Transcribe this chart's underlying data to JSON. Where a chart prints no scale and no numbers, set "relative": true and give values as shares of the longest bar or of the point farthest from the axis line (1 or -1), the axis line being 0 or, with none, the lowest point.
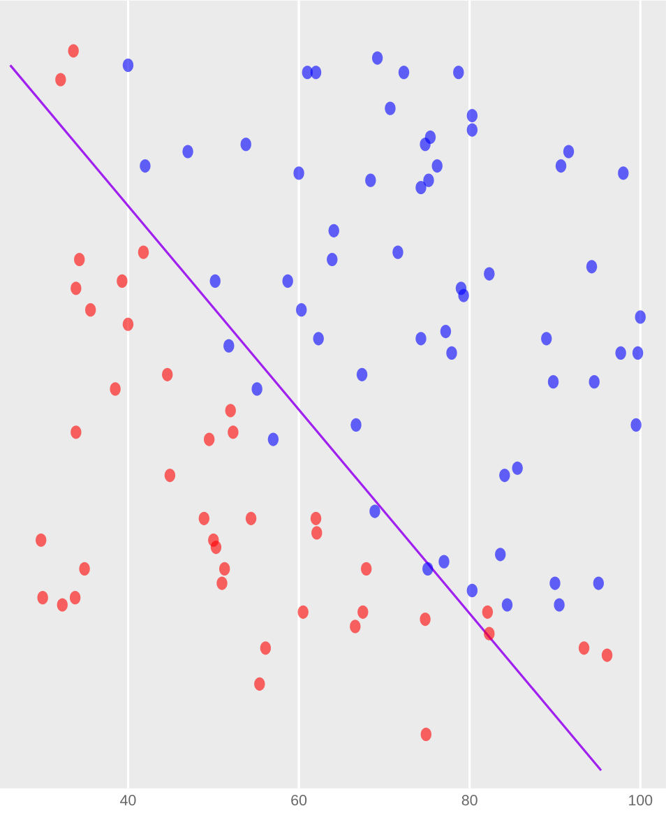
{
  "chart_data": {
    "type": "scatter",
    "relative": true,
    "marker": "circle",
    "grid": "x",
    "xlim": [
      25,
      103
    ],
    "xticks": [
      40,
      60,
      80,
      100
    ],
    "series": [
      {
        "color": "#ff0000",
        "x": [
          33.6,
          32.1,
          29.8,
          30.0,
          32.3,
          33.8,
          34.9,
          33.9,
          34.3,
          33.9,
          35.6,
          39.3,
          40.0,
          41.8,
          38.5,
          44.6,
          44.9,
          48.9,
          49.5,
          50.0,
          50.3,
          51.3,
          51.0,
          52.0,
          52.3,
          54.4,
          56.1,
          55.4,
          60.5,
          62.0,
          62.1,
          67.9,
          67.5,
          66.6,
          74.8,
          74.9,
          82.1,
          82.3,
          93.4,
          96.1
        ],
        "values": [
          1.0,
          0.96,
          0.32,
          0.24,
          0.23,
          0.24,
          0.28,
          0.47,
          0.71,
          0.67,
          0.64,
          0.68,
          0.62,
          0.72,
          0.53,
          0.55,
          0.41,
          0.35,
          0.46,
          0.32,
          0.31,
          0.28,
          0.26,
          0.5,
          0.47,
          0.35,
          0.17,
          0.12,
          0.22,
          0.35,
          0.33,
          0.28,
          0.22,
          0.2,
          0.21,
          0.05,
          0.22,
          0.19,
          0.17,
          0.16
        ]
      },
      {
        "color": "#0000ff",
        "x": [
          40.0,
          42.0,
          47.0,
          53.8,
          50.2,
          51.8,
          55.1,
          57.0,
          60.0,
          61.0,
          62.0,
          58.7,
          60.3,
          62.3,
          63.9,
          64.1,
          68.4,
          69.2,
          70.7,
          72.3,
          67.4,
          66.7,
          68.9,
          71.6,
          74.3,
          74.3,
          74.8,
          75.4,
          75.2,
          76.2,
          75.1,
          77.0,
          77.2,
          77.9,
          78.7,
          80.3,
          80.3,
          79.0,
          79.3,
          82.3,
          80.3,
          83.6,
          84.1,
          85.6,
          84.4,
          89.0,
          89.8,
          90.0,
          90.7,
          91.6,
          94.3,
          94.6,
          95.1,
          97.7,
          98.0,
          99.7,
          100.0,
          99.5,
          90.5
        ],
        "values": [
          0.98,
          0.84,
          0.86,
          0.87,
          0.68,
          0.59,
          0.53,
          0.46,
          0.83,
          0.97,
          0.97,
          0.68,
          0.64,
          0.6,
          0.71,
          0.75,
          0.82,
          0.99,
          0.92,
          0.97,
          0.55,
          0.48,
          0.36,
          0.72,
          0.6,
          0.81,
          0.87,
          0.88,
          0.82,
          0.84,
          0.28,
          0.29,
          0.61,
          0.58,
          0.97,
          0.91,
          0.89,
          0.67,
          0.66,
          0.69,
          0.25,
          0.3,
          0.41,
          0.42,
          0.23,
          0.6,
          0.54,
          0.26,
          0.84,
          0.86,
          0.7,
          0.54,
          0.26,
          0.58,
          0.83,
          0.58,
          0.63,
          0.48,
          0.23
        ]
      },
      {
        "type": "line",
        "color": "#a020f0",
        "marker": "none",
        "x": [
          26.2,
          95.4
        ],
        "values": [
          0.98,
          0.0
        ]
      }
    ]
  }
}
